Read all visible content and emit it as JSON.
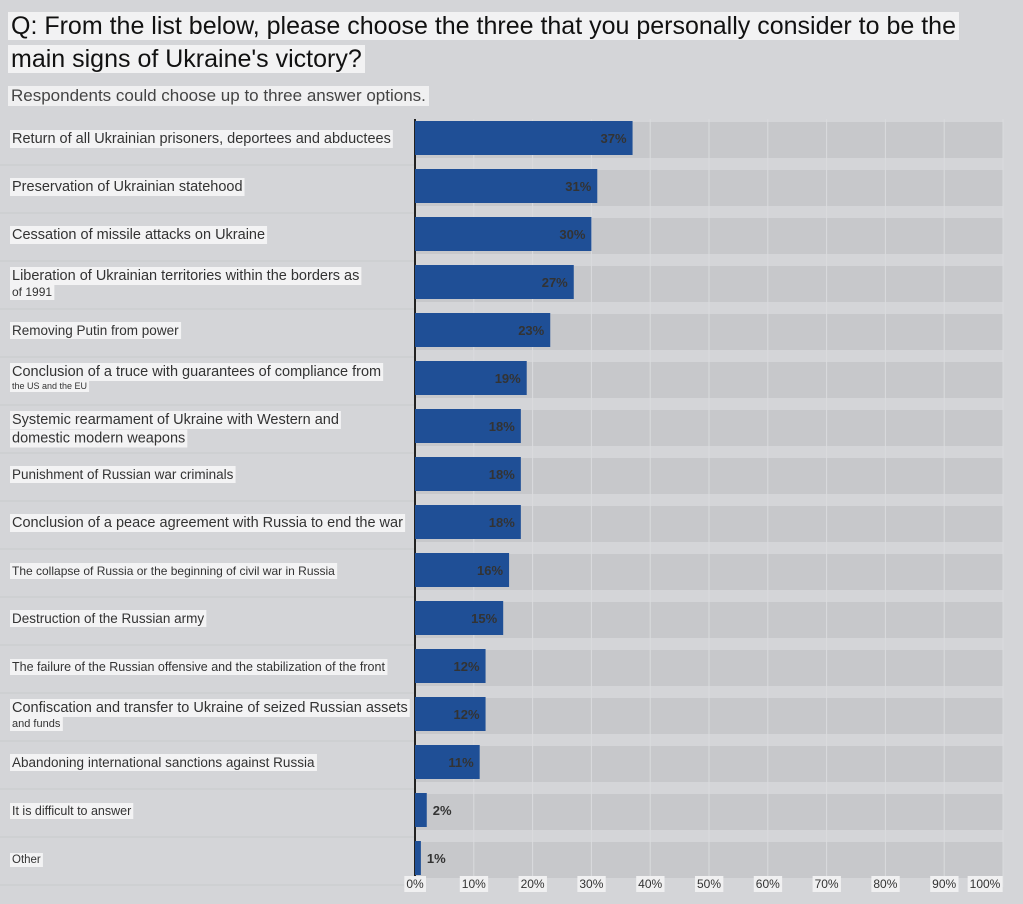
{
  "title": "Q: From the list below, please choose the three that you personally consider to be the main signs of Ukraine's victory?",
  "subtitle": "Respondents could choose up to three answer options.",
  "colors": {
    "bar": "#1f4f96",
    "row": "#c7c8cb",
    "background": "#d4d5d8",
    "label_bg": "#f3f3f4"
  },
  "chart_data": {
    "type": "bar",
    "orientation": "horizontal",
    "categories": [
      "Return of all Ukrainian prisoners, deportees and abductees",
      "Preservation of Ukrainian statehood",
      "Cessation of missile attacks on Ukraine",
      "Liberation of Ukrainian territories within the borders as of 1991",
      "Removing Putin from power",
      "Conclusion of a truce with guarantees of compliance from the US and the EU",
      "Systemic rearmament of Ukraine with Western and domestic modern weapons",
      "Punishment of Russian war criminals",
      "Conclusion of a peace agreement with Russia to end the war",
      "The collapse of Russia or the beginning of civil war in Russia",
      "Destruction of the Russian army",
      "The failure of the Russian offensive and the stabilization of the front",
      "Confiscation and transfer to Ukraine of seized Russian assets and funds",
      "Abandoning international sanctions against Russia",
      "It is difficult to answer",
      "Other"
    ],
    "values": [
      37,
      31,
      30,
      27,
      23,
      19,
      18,
      18,
      18,
      16,
      15,
      12,
      12,
      11,
      2,
      1
    ],
    "data_labels": [
      "37%",
      "31%",
      "30%",
      "27%",
      "23%",
      "19%",
      "18%",
      "18%",
      "18%",
      "16%",
      "15%",
      "12%",
      "12%",
      "11%",
      "2%",
      "1%"
    ],
    "x_ticks": [
      "0%",
      "10%",
      "20%",
      "30%",
      "40%",
      "50%",
      "60%",
      "70%",
      "80%",
      "90%",
      "100%"
    ],
    "xlim": [
      0,
      100
    ],
    "grid": true
  }
}
